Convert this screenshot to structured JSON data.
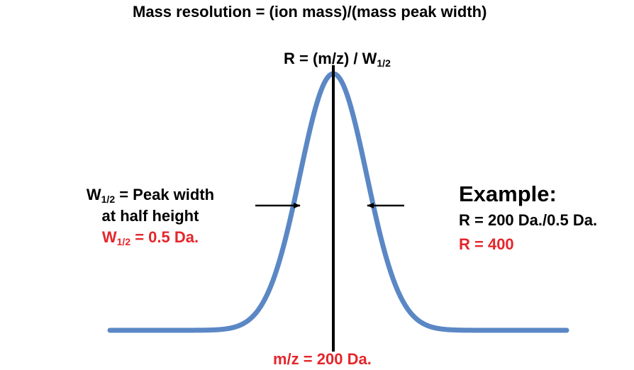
{
  "title": "Mass resolution = (ion mass)/(mass peak width)",
  "formula": {
    "prefix": "R = (m/z) / W",
    "subscript": "1/2"
  },
  "width_definition": {
    "symbol": "W",
    "subscript": "1/2",
    "line1_suffix": " = Peak width",
    "line2": "at half height",
    "value_symbol": "W",
    "value_subscript": "1/2",
    "value_suffix": " = 0.5 Da."
  },
  "example": {
    "heading": "Example:",
    "calculation": "R = 200 Da./0.5 Da.",
    "result": "R = 400"
  },
  "peak_center_label": "m/z = 200 Da.",
  "colors": {
    "curve": "#5b87c5",
    "highlight": "#e4262b",
    "text": "#000000"
  },
  "icons": [
    "arrow-right-icon",
    "arrow-left-icon"
  ]
}
